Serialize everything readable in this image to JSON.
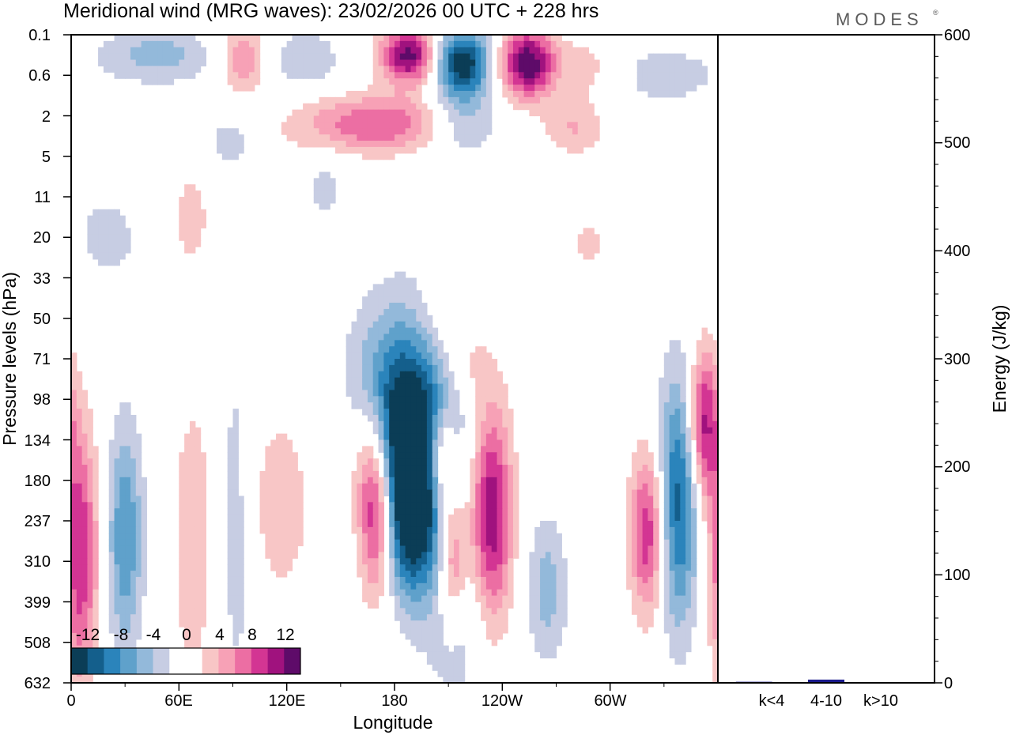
{
  "title": "Meridional wind (MRG waves):  23/02/2026  00 UTC  + 228 hrs",
  "brand": "MODES",
  "brand_mark": "®",
  "colors": {
    "neg": [
      "#0b3d56",
      "#145f8c",
      "#2b84bb",
      "#5fa1cb",
      "#93b9da",
      "#c7cde3"
    ],
    "zero": "#ffffff",
    "pos": [
      "#f8c6c6",
      "#f7a1b6",
      "#ec6ea3",
      "#d33593",
      "#a0127e",
      "#5e0b69"
    ]
  },
  "chart_data": [
    {
      "type": "heatmap",
      "title": "Meridional wind (MRG waves):  23/02/2026  00 UTC  + 228 hrs",
      "xlabel": "Longitude",
      "ylabel": "Pressure levels (hPa)",
      "x_ticks": [
        "0",
        "60E",
        "120E",
        "180",
        "120W",
        "60W"
      ],
      "x_tick_lon": [
        0,
        60,
        120,
        180,
        240,
        300
      ],
      "xlim": [
        0,
        360
      ],
      "y_levels": [
        "0.1",
        "0.6",
        "2",
        "5",
        "11",
        "20",
        "33",
        "50",
        "71",
        "98",
        "134",
        "180",
        "237",
        "310",
        "399",
        "508",
        "632"
      ],
      "colorbar": {
        "labels": [
          "-12",
          "-8",
          "-4",
          "0",
          "4",
          "8",
          "12"
        ],
        "bounds": [
          -14,
          -12,
          -10,
          -8,
          -6,
          -4,
          -2,
          0,
          2,
          4,
          6,
          8,
          10,
          12,
          14
        ]
      },
      "features": [
        {
          "lon": 186,
          "level": 9.4,
          "value": -14,
          "sx": 20,
          "sy": 1.8
        },
        {
          "lon": 190,
          "level": 11.8,
          "value": -14,
          "sx": 12,
          "sy": 1.5
        },
        {
          "lon": 170,
          "level": 11.6,
          "value": 14,
          "sx": 7,
          "sy": 1.5
        },
        {
          "lon": 206,
          "level": 10.5,
          "value": 10,
          "sx": 6,
          "sy": 0.9
        },
        {
          "lon": 212,
          "level": 13,
          "value": 9,
          "sx": 6,
          "sy": 1.2
        },
        {
          "lon": 234,
          "level": 11.8,
          "value": 12,
          "sx": 8,
          "sy": 1.9
        },
        {
          "lon": 214,
          "level": 14.5,
          "value": -4,
          "sx": 12,
          "sy": 1.5
        },
        {
          "lon": 265,
          "level": 13.7,
          "value": -5,
          "sx": 8,
          "sy": 1.3
        },
        {
          "lon": 321,
          "level": 12.3,
          "value": 10,
          "sx": 7,
          "sy": 1.4
        },
        {
          "lon": 338,
          "level": 11.5,
          "value": -11,
          "sx": 8,
          "sy": 2.2
        },
        {
          "lon": 352,
          "level": 9.6,
          "value": 11,
          "sx": 6,
          "sy": 1.3
        },
        {
          "lon": 5,
          "level": 12.8,
          "value": 10,
          "sx": 7,
          "sy": 2.2
        },
        {
          "lon": 30,
          "level": 12.4,
          "value": -8,
          "sx": 7,
          "sy": 2.0
        },
        {
          "lon": 68,
          "level": 12.5,
          "value": 4,
          "sx": 8,
          "sy": 2.5
        },
        {
          "lon": 92,
          "level": 12,
          "value": -3,
          "sx": 8,
          "sy": 3.5
        },
        {
          "lon": 116,
          "level": 11.6,
          "value": 4,
          "sx": 12,
          "sy": 1.5
        },
        {
          "lon": 160,
          "level": 10.4,
          "value": 4,
          "sx": 10,
          "sy": 1.2
        },
        {
          "lon": 208,
          "level": 7.1,
          "value": 3,
          "sx": 12,
          "sy": 0.8
        },
        {
          "lon": 130,
          "level": 0.6,
          "value": -4,
          "sx": 14,
          "sy": 0.5
        },
        {
          "lon": 96,
          "level": 0.6,
          "value": 6,
          "sx": 9,
          "sy": 0.6
        },
        {
          "lon": 188,
          "level": 0.5,
          "value": 13,
          "sx": 11,
          "sy": 0.5
        },
        {
          "lon": 218,
          "level": 0.7,
          "value": -14,
          "sx": 11,
          "sy": 0.6
        },
        {
          "lon": 254,
          "level": 0.7,
          "value": 14,
          "sx": 11,
          "sy": 0.6
        },
        {
          "lon": 170,
          "level": 2.2,
          "value": 8,
          "sx": 30,
          "sy": 0.5
        },
        {
          "lon": 218,
          "level": 2.2,
          "value": -5,
          "sx": 14,
          "sy": 0.6
        },
        {
          "lon": 48,
          "level": 0.5,
          "value": -5,
          "sx": 22,
          "sy": 0.5
        },
        {
          "lon": 90,
          "level": 2.8,
          "value": -4,
          "sx": 12,
          "sy": 0.7
        },
        {
          "lon": 280,
          "level": 2.3,
          "value": 4,
          "sx": 12,
          "sy": 0.5
        },
        {
          "lon": 330,
          "level": 1.0,
          "value": -3,
          "sx": 25,
          "sy": 0.6
        },
        {
          "lon": 290,
          "level": 0.8,
          "value": 3,
          "sx": 12,
          "sy": 0.6
        },
        {
          "lon": 100,
          "level": 3.8,
          "value": 2.5,
          "sx": 20,
          "sy": 1.0
        },
        {
          "lon": 66,
          "level": 4.6,
          "value": 3,
          "sx": 6,
          "sy": 0.8
        },
        {
          "lon": 220,
          "level": 8.3,
          "value": 3,
          "sx": 10,
          "sy": 0.7
        },
        {
          "lon": 20,
          "level": 5.0,
          "value": -3,
          "sx": 14,
          "sy": 0.8
        },
        {
          "lon": 140,
          "level": 3.8,
          "value": -3,
          "sx": 10,
          "sy": 0.6
        },
        {
          "lon": 288,
          "level": 5.1,
          "value": 2.5,
          "sx": 8,
          "sy": 0.6
        }
      ]
    },
    {
      "type": "bar",
      "categories": [
        "k<4",
        "4-10",
        "k>10"
      ],
      "values": [
        1,
        3,
        0.5
      ],
      "ylabel": "Energy (J/kg)",
      "ylim": [
        0,
        600
      ],
      "y_ticks": [
        "0",
        "100",
        "200",
        "300",
        "400",
        "500",
        "600"
      ],
      "bar_color": "#1a1a8c"
    }
  ]
}
